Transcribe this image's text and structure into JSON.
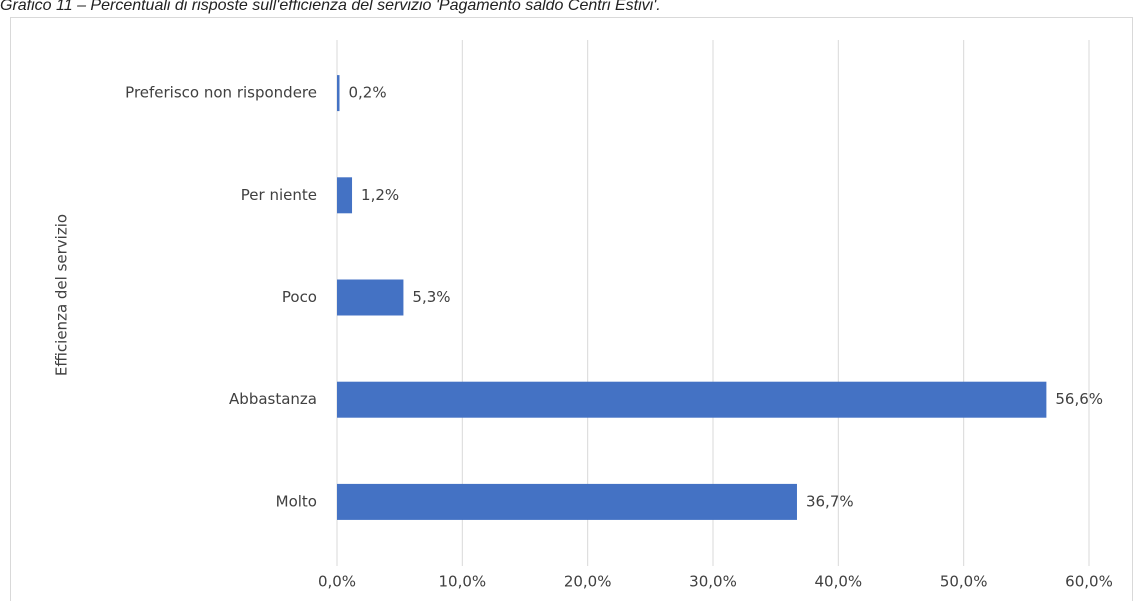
{
  "chart_data": {
    "type": "bar",
    "orientation": "horizontal",
    "title": "Grafico 11 – Percentuali di risposte sull'efficienza del servizio 'Pagamento saldo Centri Estivi'.",
    "y_label": "Efficienza del servizio",
    "categories": [
      "Preferisco non rispondere",
      "Per niente",
      "Poco",
      "Abbastanza",
      "Molto"
    ],
    "values": [
      0.2,
      1.2,
      5.3,
      56.6,
      36.7
    ],
    "value_labels": [
      "0,2%",
      "1,2%",
      "5,3%",
      "56,6%",
      "36,7%"
    ],
    "color": "#4472c4",
    "xlim": [
      0,
      60
    ],
    "xticks": [
      {
        "value": 0,
        "label": "0,0%"
      },
      {
        "value": 10,
        "label": "10,0%"
      },
      {
        "value": 20,
        "label": "20,0%"
      },
      {
        "value": 30,
        "label": "30,0%"
      },
      {
        "value": 40,
        "label": "40,0%"
      },
      {
        "value": 50,
        "label": "50,0%"
      },
      {
        "value": 60,
        "label": "60,0%"
      }
    ],
    "grid": true
  }
}
